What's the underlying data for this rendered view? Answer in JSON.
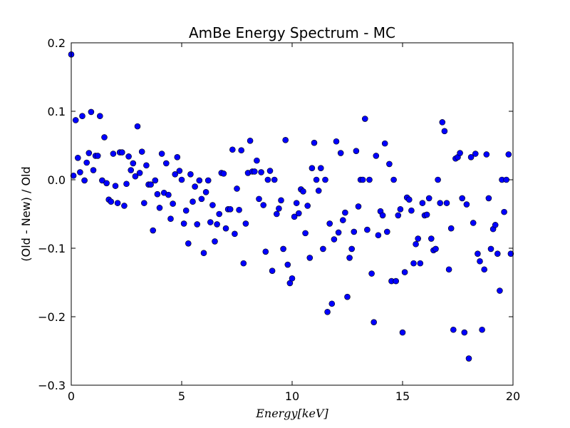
{
  "chart_data": {
    "type": "scatter",
    "title": "AmBe Energy Spectrum - MC",
    "xlabel": "Energy[keV]",
    "ylabel": "(Old - New) / Old",
    "xlim": [
      0,
      20
    ],
    "ylim": [
      -0.3,
      0.2
    ],
    "xticks": [
      "0",
      "5",
      "10",
      "15",
      "20"
    ],
    "yticks": [
      "−0.3",
      "−0.2",
      "−0.1",
      "0.0",
      "0.1",
      "0.2"
    ],
    "grid": false,
    "legend": "none",
    "marker_color": "#0000ff",
    "series": [
      {
        "x": [
          0.0,
          0.1,
          0.2,
          0.3,
          0.4,
          0.5,
          0.6,
          0.7,
          0.8,
          0.9,
          1.0,
          1.1,
          1.2,
          1.3,
          1.4,
          1.5,
          1.6,
          1.7,
          1.8,
          1.9,
          2.0,
          2.1,
          2.2,
          2.3,
          2.4,
          2.5,
          2.6,
          2.7,
          2.8,
          2.9,
          3.0,
          3.1,
          3.2,
          3.3,
          3.4,
          3.5,
          3.6,
          3.7,
          3.8,
          3.9,
          4.0,
          4.1,
          4.2,
          4.3,
          4.4,
          4.5,
          4.6,
          4.7,
          4.8,
          4.9,
          5.0,
          5.1,
          5.2,
          5.3,
          5.4,
          5.5,
          5.6,
          5.7,
          5.8,
          5.9,
          6.0,
          6.1,
          6.2,
          6.3,
          6.4,
          6.5,
          6.6,
          6.7,
          6.8,
          6.9,
          7.0,
          7.1,
          7.2,
          7.3,
          7.4,
          7.5,
          7.6,
          7.7,
          7.8,
          7.9,
          8.0,
          8.1,
          8.2,
          8.3,
          8.4,
          8.5,
          8.6,
          8.7,
          8.8,
          8.9,
          9.0,
          9.1,
          9.2,
          9.3,
          9.4,
          9.5,
          9.6,
          9.7,
          9.8,
          9.9,
          10.0,
          10.1,
          10.2,
          10.3,
          10.4,
          10.5,
          10.6,
          10.7,
          10.8,
          10.9,
          11.0,
          11.1,
          11.2,
          11.3,
          11.4,
          11.5,
          11.6,
          11.7,
          11.8,
          11.9,
          12.0,
          12.1,
          12.2,
          12.3,
          12.4,
          12.5,
          12.6,
          12.7,
          12.8,
          12.9,
          13.0,
          13.1,
          13.2,
          13.3,
          13.4,
          13.5,
          13.6,
          13.7,
          13.8,
          13.9,
          14.0,
          14.1,
          14.2,
          14.3,
          14.4,
          14.5,
          14.6,
          14.7,
          14.8,
          14.9,
          15.0,
          15.1,
          15.2,
          15.3,
          15.4,
          15.5,
          15.6,
          15.7,
          15.8,
          15.9,
          16.0,
          16.1,
          16.2,
          16.3,
          16.4,
          16.5,
          16.6,
          16.7,
          16.8,
          16.9,
          17.0,
          17.1,
          17.2,
          17.3,
          17.4,
          17.5,
          17.6,
          17.7,
          17.8,
          17.9,
          18.0,
          18.1,
          18.2,
          18.3,
          18.4,
          18.5,
          18.6,
          18.7,
          18.8,
          18.9,
          19.0,
          19.1,
          19.2,
          19.3,
          19.4,
          19.5,
          19.6,
          19.7,
          19.8,
          19.9
        ],
        "y": [
          0.183,
          0.006,
          0.087,
          0.032,
          0.011,
          0.093,
          -0.001,
          0.025,
          0.039,
          0.099,
          0.014,
          0.035,
          0.035,
          0.093,
          -0.001,
          0.062,
          -0.005,
          -0.029,
          -0.032,
          0.038,
          -0.009,
          -0.034,
          0.04,
          0.04,
          -0.038,
          -0.006,
          0.034,
          0.014,
          0.024,
          0.005,
          0.078,
          0.01,
          0.041,
          -0.034,
          0.021,
          -0.007,
          -0.007,
          -0.074,
          -0.001,
          -0.021,
          -0.041,
          0.038,
          -0.019,
          0.024,
          -0.022,
          -0.057,
          -0.035,
          0.008,
          0.033,
          0.013,
          0.0,
          -0.064,
          -0.045,
          -0.093,
          0.008,
          -0.032,
          -0.01,
          -0.065,
          -0.001,
          -0.028,
          -0.107,
          -0.018,
          -0.001,
          -0.062,
          -0.037,
          -0.09,
          -0.065,
          -0.05,
          0.01,
          0.009,
          -0.071,
          -0.043,
          -0.043,
          0.044,
          -0.079,
          -0.013,
          -0.044,
          0.043,
          -0.122,
          -0.064,
          0.01,
          0.057,
          0.012,
          0.012,
          0.028,
          -0.028,
          0.011,
          -0.037,
          -0.105,
          0.0,
          0.013,
          -0.133,
          0.0,
          -0.05,
          -0.042,
          -0.03,
          -0.101,
          0.058,
          -0.124,
          -0.151,
          -0.144,
          -0.054,
          -0.034,
          -0.049,
          -0.014,
          -0.017,
          -0.078,
          -0.038,
          -0.114,
          0.017,
          0.054,
          0.0,
          -0.016,
          0.017,
          -0.101,
          0.0,
          -0.193,
          -0.064,
          -0.181,
          -0.087,
          0.056,
          -0.077,
          0.039,
          -0.059,
          -0.048,
          -0.171,
          -0.114,
          -0.101,
          -0.076,
          0.042,
          -0.039,
          0.0,
          0.0,
          0.089,
          -0.073,
          0.0,
          -0.137,
          -0.208,
          0.035,
          -0.081,
          -0.046,
          -0.052,
          0.053,
          -0.076,
          0.023,
          -0.148,
          0.0,
          -0.148,
          -0.052,
          -0.043,
          -0.223,
          -0.135,
          -0.026,
          -0.029,
          -0.045,
          -0.122,
          -0.094,
          -0.086,
          -0.122,
          -0.034,
          -0.052,
          -0.051,
          -0.027,
          -0.086,
          -0.103,
          -0.101,
          0.0,
          -0.034,
          0.084,
          0.071,
          -0.034,
          -0.131,
          -0.071,
          -0.219,
          0.031,
          0.033,
          0.039,
          -0.027,
          -0.223,
          -0.036,
          -0.261,
          0.033,
          -0.063,
          0.038,
          -0.108,
          -0.119,
          -0.219,
          -0.131,
          0.037,
          -0.027,
          -0.101,
          -0.072,
          -0.066,
          -0.108,
          -0.162,
          0.0,
          -0.047,
          0.0,
          0.037,
          -0.108
        ]
      }
    ]
  }
}
